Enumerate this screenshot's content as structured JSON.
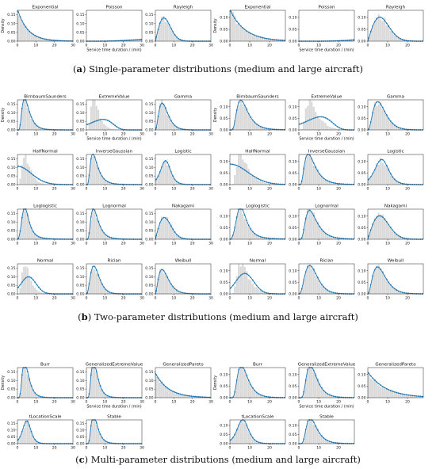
{
  "captions": {
    "a": {
      "letter": "a",
      "text": "Single-parameter distributions (medium and large aircraft)"
    },
    "b": {
      "letter": "b",
      "text": "Two-parameter distributions (medium and large aircraft)"
    },
    "c": {
      "letter": "c",
      "text": "Multi-parameter distributions (medium and large aircraft)"
    }
  },
  "axis_labels": {
    "y": "Density",
    "x": "Service time duration / (min)"
  },
  "colors": {
    "bar": "#d9d9d9",
    "line": "#1f77b4",
    "axis": "#222222"
  },
  "chart_data": {
    "type": "bar+line",
    "description_units": "histogram of service time (min) with fitted density curves",
    "panel_groups": [
      {
        "id": "a",
        "group": "medium",
        "xlim": [
          0,
          30
        ],
        "xticks": [
          0,
          10,
          20,
          30
        ],
        "ylim": [
          0,
          0.175
        ],
        "yticks": [
          0.0,
          0.05,
          0.1,
          0.15
        ],
        "panels": [
          {
            "title": "Exponential",
            "dist": "exp",
            "p": [
              5.5
            ]
          },
          {
            "title": "Poisson",
            "dist": "gamma",
            "p": [
              5.5,
              0.09
            ]
          },
          {
            "title": "Rayleigh",
            "dist": "rayleigh",
            "p": [
              4.6
            ]
          }
        ]
      },
      {
        "id": "a",
        "group": "large",
        "xlim": [
          0,
          28
        ],
        "xticks": [
          0,
          10,
          20
        ],
        "ylim": [
          0,
          0.13
        ],
        "yticks": [
          0.0,
          0.05,
          0.1
        ],
        "panels": [
          {
            "title": "Exponential",
            "dist": "exp",
            "p": [
              7.5
            ]
          },
          {
            "title": "Poisson",
            "dist": "gamma",
            "p": [
              7.5,
              0.12
            ]
          },
          {
            "title": "Rayleigh",
            "dist": "rayleigh",
            "p": [
              6.0
            ]
          }
        ]
      },
      {
        "id": "b",
        "group": "medium",
        "xlim": [
          0,
          30
        ],
        "xticks": [
          0,
          10,
          20,
          30
        ],
        "ylim": [
          0,
          0.175
        ],
        "yticks": [
          0.0,
          0.05,
          0.1,
          0.15
        ],
        "panels": [
          {
            "title": "BirnbaumSaunders",
            "dist": "lognorm",
            "p": [
              1.6,
              0.5
            ]
          },
          {
            "title": "ExtremeValue",
            "dist": "gumbelmin",
            "p": [
              9,
              6
            ]
          },
          {
            "title": "Gamma",
            "dist": "gamma",
            "p": [
              3.2,
              0.6
            ]
          },
          {
            "title": "HalfNormal",
            "dist": "halfnorm",
            "p": [
              7.5
            ]
          },
          {
            "title": "InverseGaussian",
            "dist": "lognorm",
            "p": [
              1.55,
              0.55
            ]
          },
          {
            "title": "Logistic",
            "dist": "logistic",
            "p": [
              5.5,
              1.8
            ]
          },
          {
            "title": "Loglogistic",
            "dist": "loglogistic",
            "p": [
              4.8,
              3.2
            ]
          },
          {
            "title": "Lognormal",
            "dist": "lognorm",
            "p": [
              1.6,
              0.52
            ]
          },
          {
            "title": "Nakagami",
            "dist": "rayleigh",
            "p": [
              4.8
            ]
          },
          {
            "title": "Normal",
            "dist": "norm",
            "p": [
              6.0,
              4.0
            ]
          },
          {
            "title": "Rician",
            "dist": "gamma",
            "p": [
              3.8,
              0.7
            ]
          },
          {
            "title": "Weibull",
            "dist": "gamma",
            "p": [
              2.8,
              0.5
            ]
          }
        ]
      },
      {
        "id": "b",
        "group": "large",
        "xlim": [
          0,
          28
        ],
        "xticks": [
          0,
          10,
          20
        ],
        "ylim": [
          0,
          0.13
        ],
        "yticks": [
          0.0,
          0.05,
          0.1
        ],
        "panels": [
          {
            "title": "BirnbaumSaunders",
            "dist": "lognorm",
            "p": [
              1.95,
              0.5
            ]
          },
          {
            "title": "ExtremeValue",
            "dist": "gumbelmin",
            "p": [
              11,
              6.5
            ]
          },
          {
            "title": "Gamma",
            "dist": "gamma",
            "p": [
              3.5,
              0.5
            ]
          },
          {
            "title": "HalfNormal",
            "dist": "halfnorm",
            "p": [
              9
            ]
          },
          {
            "title": "InverseGaussian",
            "dist": "lognorm",
            "p": [
              1.85,
              0.55
            ]
          },
          {
            "title": "Logistic",
            "dist": "logistic",
            "p": [
              7,
              2.3
            ]
          },
          {
            "title": "Loglogistic",
            "dist": "loglogistic",
            "p": [
              6.5,
              3.3
            ]
          },
          {
            "title": "Lognormal",
            "dist": "lognorm",
            "p": [
              1.95,
              0.52
            ]
          },
          {
            "title": "Nakagami",
            "dist": "rayleigh",
            "p": [
              6.0
            ]
          },
          {
            "title": "Normal",
            "dist": "norm",
            "p": [
              7.5,
              4.5
            ]
          },
          {
            "title": "Rician",
            "dist": "gamma",
            "p": [
              4,
              0.55
            ]
          },
          {
            "title": "Weibull",
            "dist": "gamma",
            "p": [
              3.2,
              0.45
            ]
          }
        ]
      },
      {
        "id": "c",
        "group": "medium",
        "xlim": [
          0,
          30
        ],
        "xticks": [
          0,
          10,
          20,
          30
        ],
        "ylim": [
          0,
          0.175
        ],
        "yticks": [
          0.0,
          0.05,
          0.1,
          0.15
        ],
        "panels": [
          {
            "title": "Burr",
            "dist": "lognorm",
            "p": [
              1.55,
              0.45
            ]
          },
          {
            "title": "GeneralizedExtremeValue",
            "dist": "lognorm",
            "p": [
              1.55,
              0.45
            ]
          },
          {
            "title": "GeneralizedPareto",
            "dist": "exp",
            "p": [
              7.0
            ]
          },
          {
            "title": "tLocationScale",
            "dist": "logistic",
            "p": [
              5.0,
              1.5
            ]
          },
          {
            "title": "Stable",
            "dist": "lognorm",
            "p": [
              1.55,
              0.45
            ]
          }
        ]
      },
      {
        "id": "c",
        "group": "large",
        "xlim": [
          0,
          28
        ],
        "xticks": [
          0,
          10,
          20
        ],
        "ylim": [
          0,
          0.13
        ],
        "yticks": [
          0.0,
          0.05,
          0.1
        ],
        "panels": [
          {
            "title": "Burr",
            "dist": "lognorm",
            "p": [
              1.95,
              0.45
            ]
          },
          {
            "title": "GeneralizedExtremeValue",
            "dist": "lognorm",
            "p": [
              1.95,
              0.45
            ]
          },
          {
            "title": "GeneralizedPareto",
            "dist": "exp",
            "p": [
              9.0
            ]
          },
          {
            "title": "tLocationScale",
            "dist": "logistic",
            "p": [
              6.5,
              1.9
            ]
          },
          {
            "title": "Stable",
            "dist": "lognorm",
            "p": [
              1.95,
              0.45
            ]
          }
        ]
      }
    ]
  }
}
